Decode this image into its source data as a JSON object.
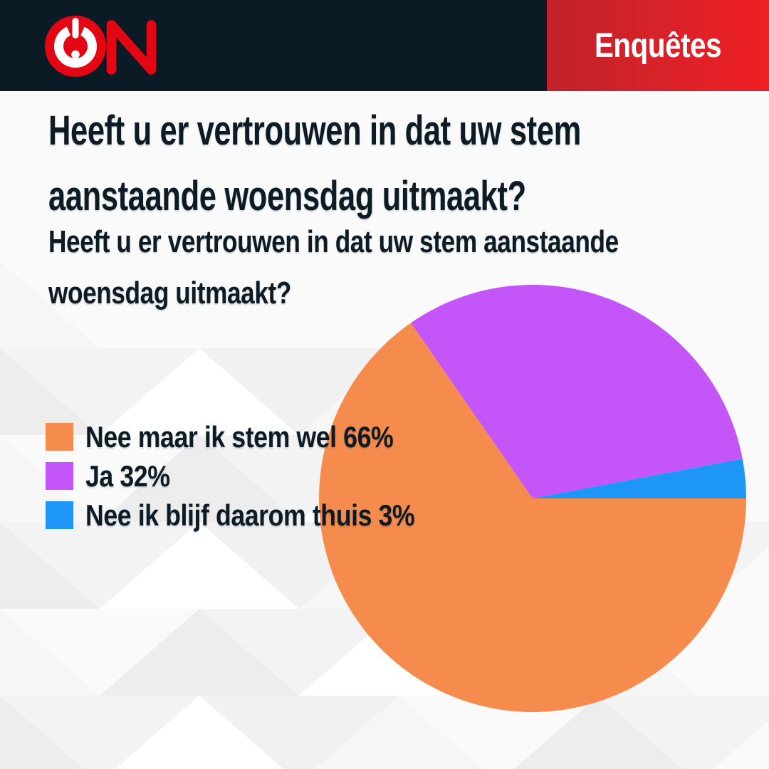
{
  "header": {
    "logo_name": "ON omroep logo",
    "logo_red": "#e30613",
    "navy": "#0a1b26",
    "badge": {
      "label": "Enquêtes",
      "gradient_left": "#c0232b",
      "gradient_right": "#ee2025",
      "text_color": "#ffffff"
    }
  },
  "question": {
    "title_lines": [
      "Heeft u er vertrouwen in dat uw stem",
      "aanstaande woensdag uitmaakt?"
    ],
    "subtitle_lines": [
      "Heeft u er vertrouwen in dat uw stem aanstaande",
      "woensdag uitmaakt?"
    ],
    "text_color": "#0d1b24"
  },
  "chart_data": {
    "type": "pie",
    "title": "Heeft u er vertrouwen in dat uw stem aanstaande woensdag uitmaakt?",
    "categories": [
      "Nee maar ik stem wel",
      "Ja",
      "Nee ik blijf daarom thuis"
    ],
    "values": [
      66,
      32,
      3
    ],
    "unit": "%",
    "colors": [
      "#f68b4e",
      "#c455f8",
      "#1e96f8"
    ],
    "legend_labels": [
      "Nee maar ik stem wel 66%",
      "Ja 32%",
      "Nee ik blijf daarom thuis 3%"
    ],
    "start_angle_deg": 0,
    "direction": "clockwise",
    "legend_position": "middle-left"
  },
  "background": {
    "base": "#fafafa",
    "triangle_palette": [
      "#f6f6f7",
      "#f1f1f2",
      "#ffffff",
      "#f3f3f4",
      "#ededee",
      "#fafafa"
    ]
  }
}
